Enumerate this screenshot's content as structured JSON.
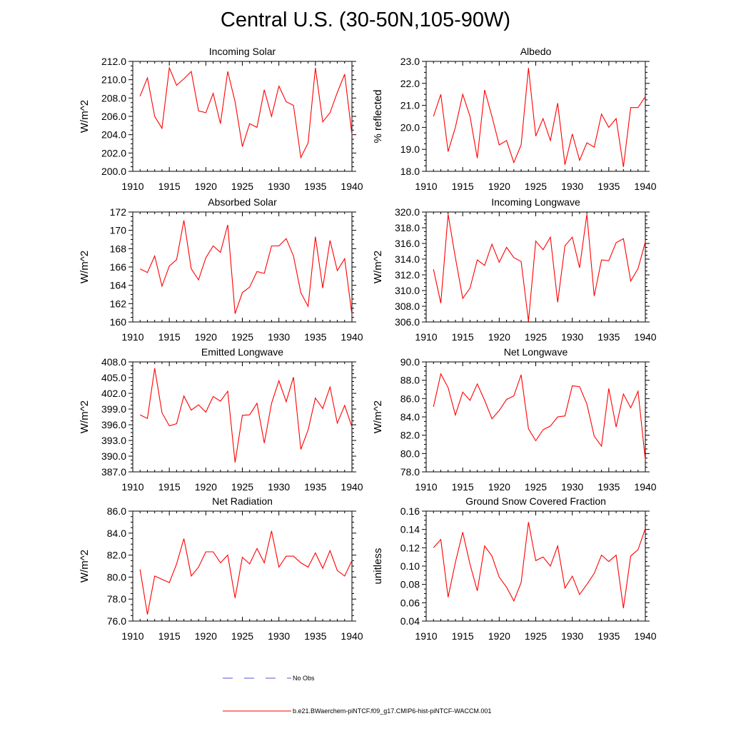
{
  "figure_title": "Central U.S. (30-50N,105-90W)",
  "legend": [
    {
      "label": "No Obs",
      "color": "#5555cc",
      "style": "dashed"
    },
    {
      "label": "b.e21.BWaerchem-piNTCF.f09_g17.CMIP6-hist-piNTCF-WACCM.001",
      "color": "#ff0000",
      "style": "solid"
    }
  ],
  "chart_data": [
    {
      "type": "line",
      "title": "Incoming Solar",
      "xlabel": "",
      "ylabel": "W/m^2",
      "xlim": [
        1910,
        1940
      ],
      "ylim": [
        200.0,
        212.0
      ],
      "xticks": [
        1910,
        1915,
        1920,
        1925,
        1930,
        1935,
        1940
      ],
      "yticks": [
        200.0,
        202.0,
        204.0,
        206.0,
        208.0,
        210.0,
        212.0
      ],
      "ytick_decimals": 1,
      "grid": false,
      "series": [
        {
          "color": "#ff0000",
          "x": [
            1911,
            1912,
            1913,
            1914,
            1915,
            1916,
            1917,
            1918,
            1919,
            1920,
            1921,
            1922,
            1923,
            1924,
            1925,
            1926,
            1927,
            1928,
            1929,
            1930,
            1931,
            1932,
            1933,
            1934,
            1935,
            1936,
            1937,
            1938,
            1939,
            1940
          ],
          "values": [
            208.2,
            210.2,
            206.0,
            204.7,
            211.3,
            209.4,
            210.1,
            210.9,
            206.6,
            206.4,
            208.5,
            205.2,
            210.9,
            207.6,
            202.7,
            205.2,
            204.8,
            208.9,
            206.0,
            209.3,
            207.6,
            207.2,
            201.5,
            203.1,
            211.3,
            205.4,
            206.4,
            208.6,
            210.6,
            204.0
          ]
        }
      ]
    },
    {
      "type": "line",
      "title": "Albedo",
      "xlabel": "",
      "ylabel": "% reflected",
      "xlim": [
        1910,
        1940
      ],
      "ylim": [
        18.0,
        23.0
      ],
      "xticks": [
        1910,
        1915,
        1920,
        1925,
        1930,
        1935,
        1940
      ],
      "yticks": [
        18.0,
        19.0,
        20.0,
        21.0,
        22.0,
        23.0
      ],
      "ytick_decimals": 1,
      "grid": false,
      "series": [
        {
          "color": "#ff0000",
          "x": [
            1911,
            1912,
            1913,
            1914,
            1915,
            1916,
            1917,
            1918,
            1919,
            1920,
            1921,
            1922,
            1923,
            1924,
            1925,
            1926,
            1927,
            1928,
            1929,
            1930,
            1931,
            1932,
            1933,
            1934,
            1935,
            1936,
            1937,
            1938,
            1939,
            1940
          ],
          "values": [
            20.5,
            21.5,
            18.9,
            20.0,
            21.5,
            20.5,
            18.6,
            21.7,
            20.5,
            19.2,
            19.4,
            18.4,
            19.2,
            22.7,
            19.6,
            20.4,
            19.4,
            21.1,
            18.3,
            19.7,
            18.5,
            19.3,
            19.1,
            20.6,
            20.0,
            20.4,
            18.2,
            20.9,
            20.9,
            21.4
          ]
        }
      ]
    },
    {
      "type": "line",
      "title": "Absorbed Solar",
      "xlabel": "",
      "ylabel": "W/m^2",
      "xlim": [
        1910,
        1940
      ],
      "ylim": [
        160,
        172
      ],
      "xticks": [
        1910,
        1915,
        1920,
        1925,
        1930,
        1935,
        1940
      ],
      "yticks": [
        160,
        162,
        164,
        166,
        168,
        170,
        172
      ],
      "ytick_decimals": 0,
      "grid": false,
      "series": [
        {
          "color": "#ff0000",
          "x": [
            1911,
            1912,
            1913,
            1914,
            1915,
            1916,
            1917,
            1918,
            1919,
            1920,
            1921,
            1922,
            1923,
            1924,
            1925,
            1926,
            1927,
            1928,
            1929,
            1930,
            1931,
            1932,
            1933,
            1934,
            1935,
            1936,
            1937,
            1938,
            1939,
            1940
          ],
          "values": [
            165.8,
            165.4,
            167.2,
            163.9,
            166.1,
            166.8,
            171.1,
            165.8,
            164.6,
            167.0,
            168.3,
            167.6,
            170.6,
            160.9,
            163.2,
            163.8,
            165.5,
            165.3,
            168.3,
            168.3,
            169.1,
            167.2,
            163.2,
            161.7,
            169.3,
            163.7,
            168.9,
            165.6,
            166.9,
            160.8
          ]
        }
      ]
    },
    {
      "type": "line",
      "title": "Incoming Longwave",
      "xlabel": "",
      "ylabel": "W/m^2",
      "xlim": [
        1910,
        1940
      ],
      "ylim": [
        306.0,
        320.0
      ],
      "xticks": [
        1910,
        1915,
        1920,
        1925,
        1930,
        1935,
        1940
      ],
      "yticks": [
        306.0,
        308.0,
        310.0,
        312.0,
        314.0,
        316.0,
        318.0,
        320.0
      ],
      "ytick_decimals": 1,
      "grid": false,
      "series": [
        {
          "color": "#ff0000",
          "x": [
            1911,
            1912,
            1913,
            1914,
            1915,
            1916,
            1917,
            1918,
            1919,
            1920,
            1921,
            1922,
            1923,
            1924,
            1925,
            1926,
            1927,
            1928,
            1929,
            1930,
            1931,
            1932,
            1933,
            1934,
            1935,
            1936,
            1937,
            1938,
            1939,
            1940
          ],
          "values": [
            312.7,
            308.4,
            319.7,
            314.2,
            309.0,
            310.3,
            313.9,
            313.2,
            315.9,
            313.6,
            315.5,
            314.2,
            313.7,
            306.1,
            316.3,
            315.2,
            316.8,
            308.5,
            315.7,
            316.8,
            312.9,
            319.7,
            309.3,
            313.9,
            313.8,
            316.1,
            316.6,
            311.2,
            312.8,
            316.2
          ]
        }
      ]
    },
    {
      "type": "line",
      "title": "Emitted Longwave",
      "xlabel": "",
      "ylabel": "W/m^2",
      "xlim": [
        1910,
        1940
      ],
      "ylim": [
        387.0,
        408.0
      ],
      "xticks": [
        1910,
        1915,
        1920,
        1925,
        1930,
        1935,
        1940
      ],
      "yticks": [
        387.0,
        390.0,
        393.0,
        396.0,
        399.0,
        402.0,
        405.0,
        408.0
      ],
      "ytick_decimals": 1,
      "grid": false,
      "series": [
        {
          "color": "#ff0000",
          "x": [
            1911,
            1912,
            1913,
            1914,
            1915,
            1916,
            1917,
            1918,
            1919,
            1920,
            1921,
            1922,
            1923,
            1924,
            1925,
            1926,
            1927,
            1928,
            1929,
            1930,
            1931,
            1932,
            1933,
            1934,
            1935,
            1936,
            1937,
            1938,
            1939,
            1940
          ],
          "values": [
            397.9,
            397.2,
            406.8,
            398.3,
            395.8,
            396.2,
            401.5,
            398.8,
            399.8,
            398.4,
            401.4,
            400.5,
            402.4,
            388.8,
            397.8,
            397.9,
            400.1,
            392.5,
            400.1,
            404.4,
            400.4,
            405.1,
            391.3,
            395.0,
            401.1,
            399.1,
            403.2,
            396.3,
            399.7,
            395.6
          ]
        }
      ]
    },
    {
      "type": "line",
      "title": "Net Longwave",
      "xlabel": "",
      "ylabel": "W/m^2",
      "xlim": [
        1910,
        1940
      ],
      "ylim": [
        78.0,
        90.0
      ],
      "xticks": [
        1910,
        1915,
        1920,
        1925,
        1930,
        1935,
        1940
      ],
      "yticks": [
        78.0,
        80.0,
        82.0,
        84.0,
        86.0,
        88.0,
        90.0
      ],
      "ytick_decimals": 1,
      "grid": false,
      "series": [
        {
          "color": "#ff0000",
          "x": [
            1911,
            1912,
            1913,
            1914,
            1915,
            1916,
            1917,
            1918,
            1919,
            1920,
            1921,
            1922,
            1923,
            1924,
            1925,
            1926,
            1927,
            1928,
            1929,
            1930,
            1931,
            1932,
            1933,
            1934,
            1935,
            1936,
            1937,
            1938,
            1939,
            1940
          ],
          "values": [
            85.1,
            88.7,
            87.2,
            84.2,
            86.7,
            85.8,
            87.6,
            85.8,
            83.8,
            84.7,
            85.9,
            86.3,
            88.6,
            82.7,
            81.4,
            82.6,
            83.0,
            84.0,
            84.1,
            87.4,
            87.3,
            85.4,
            81.9,
            80.8,
            87.1,
            82.9,
            86.5,
            85.0,
            86.8,
            79.3
          ]
        }
      ]
    },
    {
      "type": "line",
      "title": "Net Radiation",
      "xlabel": "",
      "ylabel": "W/m^2",
      "xlim": [
        1910,
        1940
      ],
      "ylim": [
        76.0,
        86.0
      ],
      "xticks": [
        1910,
        1915,
        1920,
        1925,
        1930,
        1935,
        1940
      ],
      "yticks": [
        76.0,
        78.0,
        80.0,
        82.0,
        84.0,
        86.0
      ],
      "ytick_decimals": 1,
      "grid": false,
      "series": [
        {
          "color": "#ff0000",
          "x": [
            1911,
            1912,
            1913,
            1914,
            1915,
            1916,
            1917,
            1918,
            1919,
            1920,
            1921,
            1922,
            1923,
            1924,
            1925,
            1926,
            1927,
            1928,
            1929,
            1930,
            1931,
            1932,
            1933,
            1934,
            1935,
            1936,
            1937,
            1938,
            1939,
            1940
          ],
          "values": [
            80.7,
            76.6,
            80.1,
            79.8,
            79.5,
            81.2,
            83.5,
            80.1,
            80.9,
            82.3,
            82.3,
            81.3,
            82.0,
            78.1,
            81.8,
            81.2,
            82.6,
            81.3,
            84.2,
            80.9,
            81.9,
            81.9,
            81.3,
            80.9,
            82.2,
            80.8,
            82.4,
            80.6,
            80.1,
            81.5
          ]
        }
      ]
    },
    {
      "type": "line",
      "title": "Ground Snow Covered Fraction",
      "xlabel": "",
      "ylabel": "unitless",
      "xlim": [
        1910,
        1940
      ],
      "ylim": [
        0.04,
        0.16
      ],
      "xticks": [
        1910,
        1915,
        1920,
        1925,
        1930,
        1935,
        1940
      ],
      "yticks": [
        0.04,
        0.06,
        0.08,
        0.1,
        0.12,
        0.14,
        0.16
      ],
      "ytick_decimals": 2,
      "grid": false,
      "series": [
        {
          "color": "#ff0000",
          "x": [
            1911,
            1912,
            1913,
            1914,
            1915,
            1916,
            1917,
            1918,
            1919,
            1920,
            1921,
            1922,
            1923,
            1924,
            1925,
            1926,
            1927,
            1928,
            1929,
            1930,
            1931,
            1932,
            1933,
            1934,
            1935,
            1936,
            1937,
            1938,
            1939,
            1940
          ],
          "values": [
            0.12,
            0.129,
            0.066,
            0.104,
            0.137,
            0.102,
            0.073,
            0.122,
            0.111,
            0.088,
            0.077,
            0.062,
            0.082,
            0.148,
            0.106,
            0.11,
            0.1,
            0.122,
            0.076,
            0.089,
            0.069,
            0.08,
            0.092,
            0.112,
            0.105,
            0.112,
            0.054,
            0.111,
            0.118,
            0.141
          ]
        }
      ]
    }
  ]
}
